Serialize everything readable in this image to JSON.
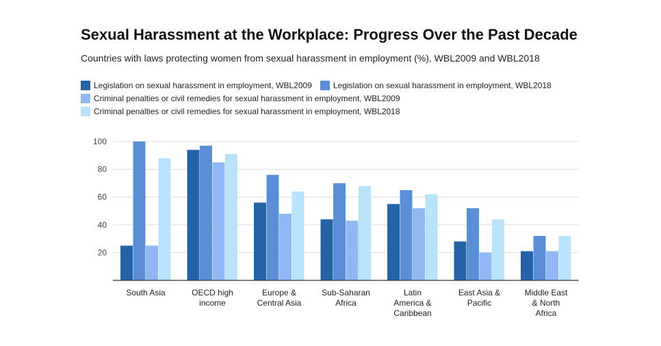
{
  "chart_data": {
    "type": "bar",
    "title": "Sexual Harassment at the Workplace: Progress Over the Past Decade",
    "subtitle": "Countries with laws protecting women from sexual harassment in employment (%), WBL2009 and WBL2018",
    "xlabel": "",
    "ylabel": "",
    "ylim": [
      0,
      100
    ],
    "yticks": [
      20,
      40,
      60,
      80,
      100
    ],
    "grid": true,
    "legend_position": "top",
    "categories": [
      [
        "South Asia"
      ],
      [
        "OECD high",
        "income"
      ],
      [
        "Europe &",
        "Central Asia"
      ],
      [
        "Sub-Saharan",
        "Africa"
      ],
      [
        "Latin",
        "America &",
        "Caribbean"
      ],
      [
        "East Asia &",
        "Pacific"
      ],
      [
        "Middle East",
        "& North",
        "Africa"
      ]
    ],
    "series": [
      {
        "name": "Legislation on sexual harassment in employment, WBL2009",
        "color": "#2563a8",
        "values": [
          25,
          94,
          56,
          44,
          55,
          28,
          21
        ]
      },
      {
        "name": "Legislation on sexual harassment in employment, WBL2018",
        "color": "#5a8fd8",
        "values": [
          100,
          97,
          76,
          70,
          65,
          52,
          32
        ]
      },
      {
        "name": "Criminal penalties or civil remedies for sexual harassment in employment, WBL2009",
        "color": "#8fb8f4",
        "values": [
          25,
          85,
          48,
          43,
          52,
          20,
          21
        ]
      },
      {
        "name": "Criminal penalties or civil remedies for sexual harassment in employment, WBL2018",
        "color": "#b8e3fb",
        "values": [
          88,
          91,
          64,
          68,
          62,
          44,
          32
        ]
      }
    ]
  }
}
